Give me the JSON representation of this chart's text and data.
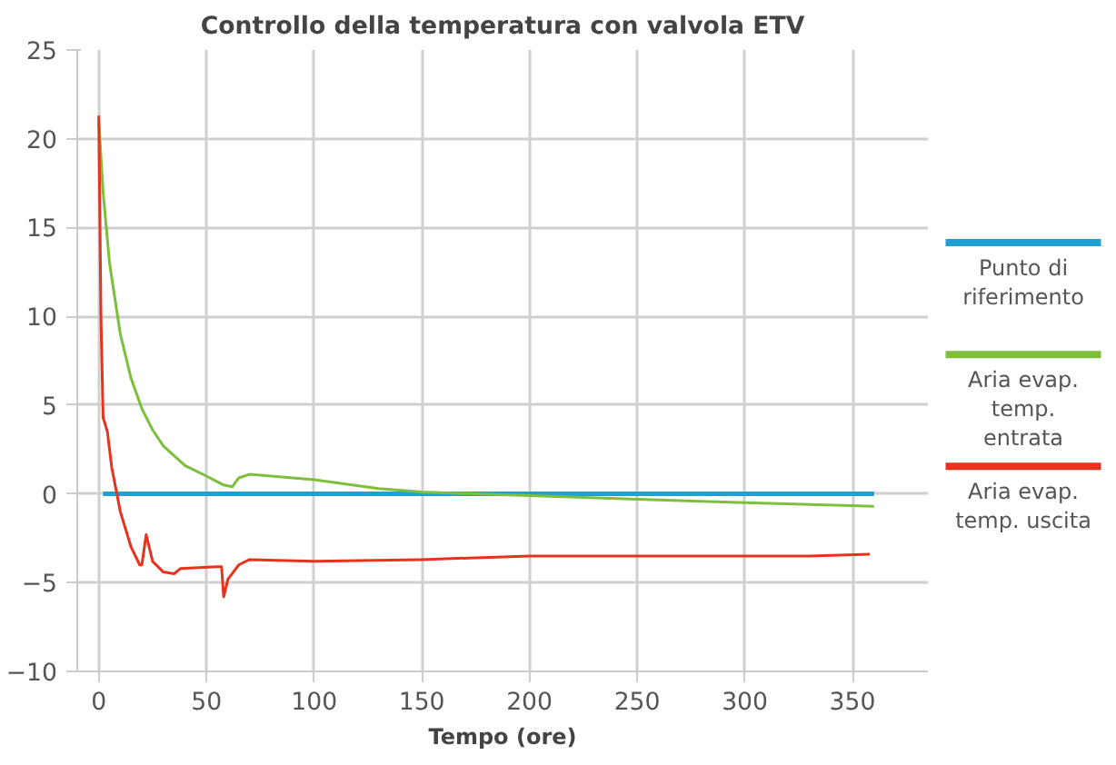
{
  "chart_data": {
    "type": "line",
    "title": "Controllo della temperatura con valvola ETV",
    "xlabel": "Tempo (ore)",
    "xlim": [
      -10,
      385
    ],
    "ylim": [
      -10,
      25
    ],
    "xticks": [
      0,
      50,
      100,
      150,
      200,
      250,
      300,
      350
    ],
    "yticks": [
      -10,
      -5,
      0,
      5,
      10,
      15,
      20,
      25
    ],
    "grid": true,
    "legend": "right",
    "line_style": "solid",
    "marker": "none",
    "series": [
      {
        "name": "Punto di riferimento",
        "color": "#1fa0d2",
        "x": [
          2,
          360
        ],
        "values": [
          0,
          0
        ]
      },
      {
        "name": "Aria evap. temp. entrata",
        "color": "#7dbe3c",
        "x": [
          0,
          2,
          5,
          10,
          15,
          20,
          25,
          30,
          40,
          50,
          58,
          62,
          65,
          70,
          100,
          130,
          150,
          200,
          250,
          300,
          360
        ],
        "values": [
          21,
          17,
          13,
          9,
          6.5,
          4.8,
          3.6,
          2.7,
          1.6,
          1.0,
          0.5,
          0.4,
          0.9,
          1.1,
          0.8,
          0.3,
          0.1,
          -0.1,
          -0.3,
          -0.5,
          -0.7
        ]
      },
      {
        "name": "Aria evap. temp. uscita",
        "color": "#e8321e",
        "x": [
          0,
          1,
          2,
          4,
          6,
          10,
          15,
          19,
          20,
          22,
          25,
          30,
          35,
          38,
          55,
          57,
          58,
          60,
          65,
          70,
          100,
          150,
          200,
          250,
          300,
          330,
          358
        ],
        "values": [
          21.3,
          10,
          4.3,
          3.5,
          1.5,
          -1.0,
          -3.0,
          -4.0,
          -4.0,
          -2.3,
          -3.8,
          -4.4,
          -4.5,
          -4.2,
          -4.1,
          -4.1,
          -5.8,
          -4.8,
          -4.0,
          -3.7,
          -3.8,
          -3.7,
          -3.5,
          -3.5,
          -3.5,
          -3.5,
          -3.4
        ]
      }
    ]
  }
}
